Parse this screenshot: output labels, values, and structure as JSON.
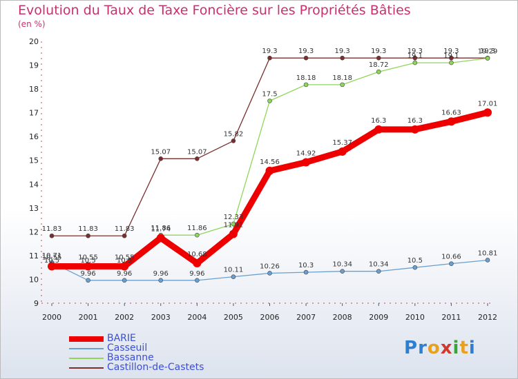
{
  "title": "Evolution du Taux de Taxe Foncière sur les Propriétés Bâties",
  "unit_label": "(en %)",
  "logo": {
    "text": "Proxiti",
    "letters": [
      {
        "ch": "P",
        "color": "#2e7fd1"
      },
      {
        "ch": "r",
        "color": "#2e7fd1"
      },
      {
        "ch": "o",
        "color": "#e8a020"
      },
      {
        "ch": "x",
        "color": "#d03a2a"
      },
      {
        "ch": "i",
        "color": "#3aa43a"
      },
      {
        "ch": "t",
        "color": "#e8a020"
      },
      {
        "ch": "i",
        "color": "#2e7fd1"
      }
    ]
  },
  "chart_data": {
    "type": "line",
    "title": "Evolution du Taux de Taxe Foncière sur les Propriétés Bâties",
    "ylabel": "(en %)",
    "ylim": [
      9,
      20
    ],
    "yticks": [
      9,
      10,
      11,
      12,
      13,
      14,
      15,
      16,
      17,
      18,
      19,
      20
    ],
    "x": [
      "2000",
      "2001",
      "2002",
      "2003",
      "2004",
      "2005",
      "2006",
      "2007",
      "2008",
      "2009",
      "2010",
      "2011",
      "2012"
    ],
    "grid": false,
    "legend": "bottom-left",
    "series": [
      {
        "name": "BARIE",
        "color": "#ee0000",
        "values": [
          10.55,
          10.55,
          10.55,
          11.74,
          10.68,
          11.91,
          14.56,
          14.92,
          15.37,
          16.3,
          16.3,
          16.63,
          17.01
        ],
        "labels": [
          "10.55",
          "10.55",
          "10.55",
          "11.74",
          "10.68",
          "11.91",
          "14.56",
          "14.92",
          "15.37",
          "16.3",
          "16.3",
          "16.63",
          "17.01"
        ]
      },
      {
        "name": "Casseuil",
        "color": "#6a9fd0",
        "values": [
          10.71,
          9.96,
          9.96,
          9.96,
          9.96,
          10.11,
          10.26,
          10.3,
          10.34,
          10.34,
          10.5,
          10.66,
          10.81
        ],
        "labels": [
          "10.71",
          "9.96",
          "9.96",
          "9.96",
          "9.96",
          "10.11",
          "10.26",
          "10.3",
          "10.34",
          "10.34",
          "10.5",
          "10.66",
          "10.81"
        ]
      },
      {
        "name": "Bassanne",
        "color": "#8ed65a",
        "values": [
          10.5,
          10.5,
          10.5,
          11.86,
          11.86,
          12.33,
          17.5,
          18.18,
          18.18,
          18.72,
          19.1,
          19.1,
          19.29
        ],
        "labels": [
          "10.5",
          "10.5",
          "10.5",
          "11.86",
          "11.86",
          "12.33",
          "17.5",
          "18.18",
          "18.18",
          "18.72",
          "19.1",
          "19.1",
          "19.29"
        ]
      },
      {
        "name": "Castillon-de-Castets",
        "color": "#7a2e2e",
        "values": [
          11.83,
          11.83,
          11.83,
          15.07,
          15.07,
          15.82,
          19.3,
          19.3,
          19.3,
          19.3,
          19.3,
          19.3,
          19.3
        ],
        "labels": [
          "11.83",
          "11.83",
          "11.83",
          "15.07",
          "15.07",
          "15.82",
          "19.3",
          "19.3",
          "19.3",
          "19.3",
          "19.3",
          "19.3",
          "19.3"
        ]
      }
    ]
  }
}
